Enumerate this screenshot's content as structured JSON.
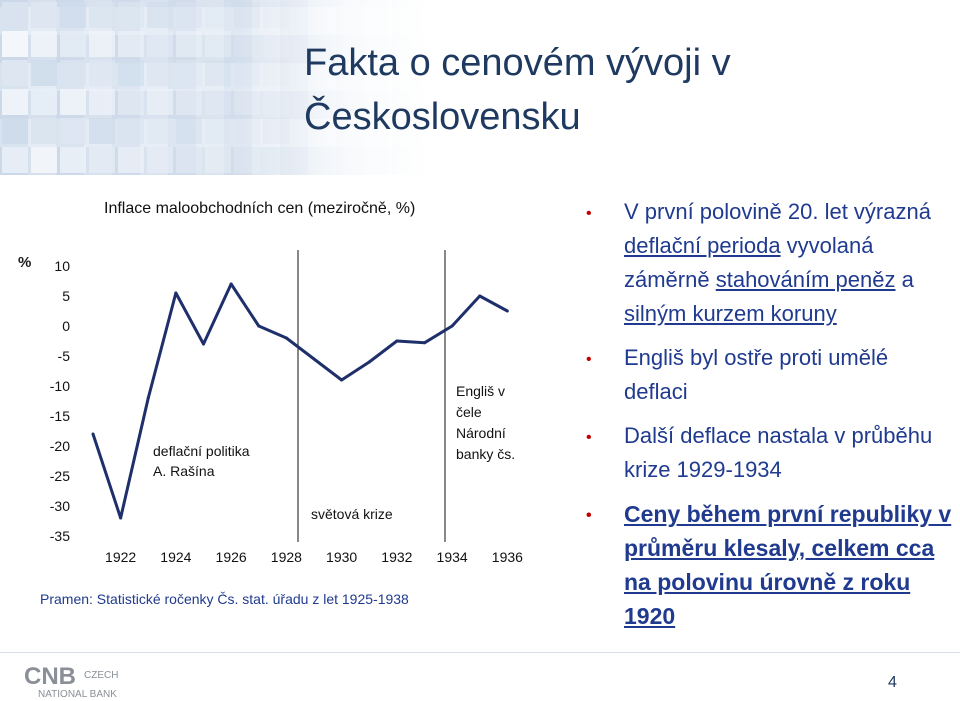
{
  "slide": {
    "title_line1": "Fakta o cenovém vývoji v",
    "title_line2": "Československu",
    "page_number": "4",
    "logo_mark": "CNB",
    "logo_line1": "CZECH",
    "logo_line2": "NATIONAL BANK"
  },
  "chart_data": {
    "type": "line",
    "title": "Inflace maloobchodních cen (meziročně, %)",
    "ylabel": "%",
    "xlabel": "",
    "ylim": [
      -35,
      10
    ],
    "yticks": [
      "10",
      "5",
      "0",
      "-5",
      "-10",
      "-15",
      "-20",
      "-25",
      "-30",
      "-35"
    ],
    "xlim": [
      1921,
      1937
    ],
    "xticks": [
      "1922",
      "1924",
      "1926",
      "1928",
      "1930",
      "1932",
      "1934",
      "1936"
    ],
    "grid": false,
    "x": [
      1921,
      1922,
      1923,
      1924,
      1925,
      1926,
      1927,
      1928,
      1929,
      1930,
      1931,
      1932,
      1933,
      1934,
      1935,
      1936
    ],
    "series": [
      {
        "values": [
          -18,
          -32,
          -12,
          5.5,
          -3,
          7,
          0,
          -2,
          -5.5,
          -9,
          -6,
          -2.5,
          -2.8,
          0,
          5,
          2.5
        ]
      }
    ],
    "color": "#1f2f6b",
    "annotations": [
      {
        "text_lines": [
          "deflační politika",
          "A. Rašína"
        ]
      },
      {
        "text_lines": [
          "světová krize"
        ]
      },
      {
        "text_lines": [
          "Engliš v",
          "čele",
          "Národní",
          "banky čs."
        ]
      }
    ],
    "source": "Pramen: Statistické ročenky Čs. stat. úřadu z let 1925-1938"
  },
  "bullets": [
    {
      "parts": [
        {
          "t": "V první polovině 20. let výrazná "
        },
        {
          "t": "deflační perioda",
          "u": true
        },
        {
          "t": " vyvolaná záměrně "
        },
        {
          "t": "stahováním peněz",
          "u": true
        },
        {
          "t": " a "
        },
        {
          "t": "silným kurzem koruny",
          "u": true
        }
      ],
      "strong": false
    },
    {
      "parts": [
        {
          "t": "Engliš byl ostře proti umělé deflaci"
        }
      ],
      "strong": false
    },
    {
      "parts": [
        {
          "t": "Další deflace nastala v průběhu krize 1929-1934"
        }
      ],
      "strong": false
    },
    {
      "parts": [
        {
          "t": "Ceny během první republiky v průměru klesaly, celkem cca na polovinu úrovně z roku 1920"
        }
      ],
      "strong": true
    }
  ],
  "colors": {
    "title": "#1f3a60",
    "bullet_text": "#1f3a8f",
    "bullet_marker": "#c00000",
    "line": "#1f2f6b"
  }
}
